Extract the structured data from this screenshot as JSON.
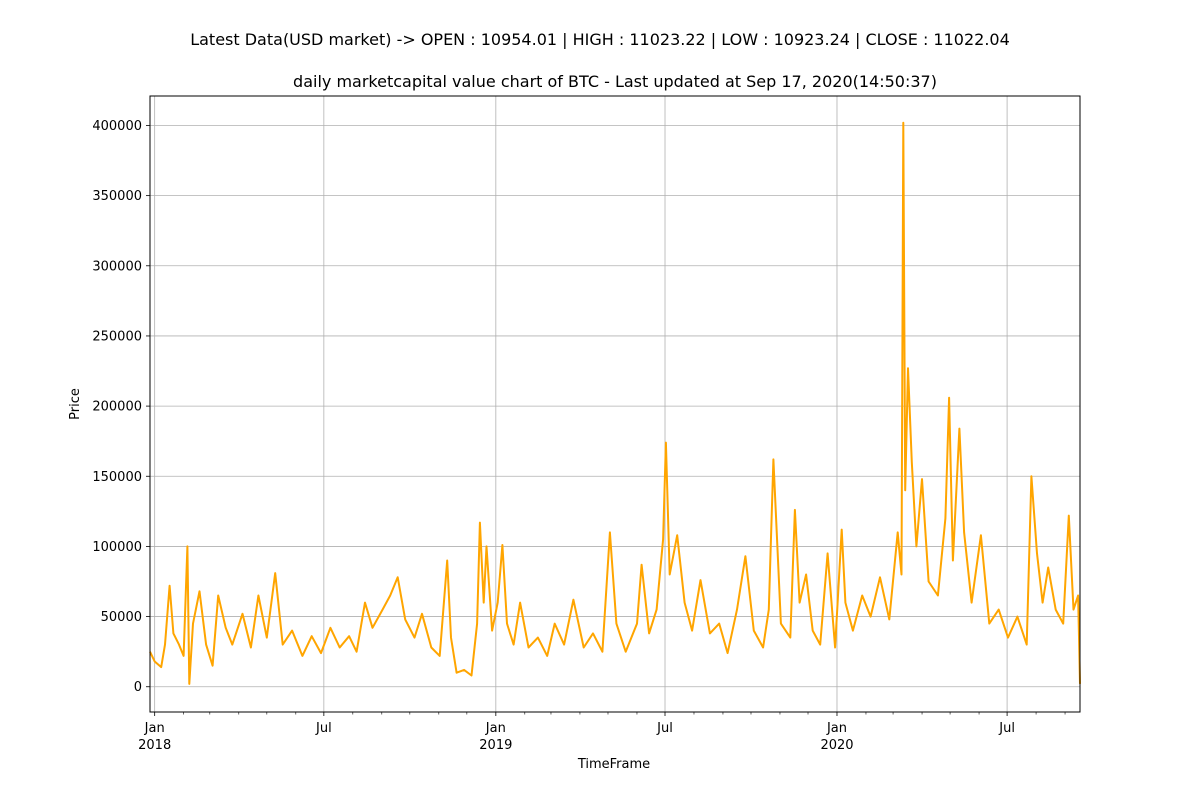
{
  "suptitle": "Latest Data(USD market) -> OPEN : 10954.01 | HIGH : 11023.22 | LOW : 10923.24 | CLOSE : 11022.04",
  "chart_data": {
    "type": "line",
    "title": "daily marketcapital value chart of BTC - Last updated at Sep 17, 2020(14:50:37)",
    "xlabel": "TimeFrame",
    "ylabel": "Price",
    "xlim": [
      "2017-12-27",
      "2020-09-17"
    ],
    "ylim": [
      -18000,
      421000
    ],
    "grid": true,
    "line_color": "#ffa500",
    "yticks": [
      0,
      50000,
      100000,
      150000,
      200000,
      250000,
      300000,
      350000,
      400000
    ],
    "ytick_labels": [
      "0",
      "50000",
      "100000",
      "150000",
      "200000",
      "250000",
      "300000",
      "350000",
      "400000"
    ],
    "xticks_major": [
      {
        "date": "2018-01-01",
        "label": "Jan",
        "year": "2018"
      },
      {
        "date": "2018-07-01",
        "label": "Jul",
        "year": ""
      },
      {
        "date": "2019-01-01",
        "label": "Jan",
        "year": "2019"
      },
      {
        "date": "2019-07-01",
        "label": "Jul",
        "year": ""
      },
      {
        "date": "2020-01-01",
        "label": "Jan",
        "year": "2020"
      },
      {
        "date": "2020-07-01",
        "label": "Jul",
        "year": ""
      }
    ],
    "series": [
      {
        "values": [
          [
            "2017-12-27",
            25000
          ],
          [
            "2018-01-01",
            18000
          ],
          [
            "2018-01-08",
            14000
          ],
          [
            "2018-01-12",
            30000
          ],
          [
            "2018-01-17",
            72000
          ],
          [
            "2018-01-21",
            38000
          ],
          [
            "2018-01-27",
            30000
          ],
          [
            "2018-02-01",
            22000
          ],
          [
            "2018-02-05",
            100000
          ],
          [
            "2018-02-07",
            2000
          ],
          [
            "2018-02-11",
            45000
          ],
          [
            "2018-02-18",
            68000
          ],
          [
            "2018-02-25",
            30000
          ],
          [
            "2018-03-04",
            15000
          ],
          [
            "2018-03-10",
            65000
          ],
          [
            "2018-03-18",
            42000
          ],
          [
            "2018-03-25",
            30000
          ],
          [
            "2018-04-05",
            52000
          ],
          [
            "2018-04-14",
            28000
          ],
          [
            "2018-04-22",
            65000
          ],
          [
            "2018-05-01",
            35000
          ],
          [
            "2018-05-10",
            81000
          ],
          [
            "2018-05-18",
            30000
          ],
          [
            "2018-05-28",
            40000
          ],
          [
            "2018-06-08",
            22000
          ],
          [
            "2018-06-18",
            36000
          ],
          [
            "2018-06-28",
            24000
          ],
          [
            "2018-07-08",
            42000
          ],
          [
            "2018-07-18",
            28000
          ],
          [
            "2018-07-28",
            36000
          ],
          [
            "2018-08-05",
            25000
          ],
          [
            "2018-08-14",
            60000
          ],
          [
            "2018-08-22",
            42000
          ],
          [
            "2018-09-01",
            54000
          ],
          [
            "2018-09-10",
            65000
          ],
          [
            "2018-09-18",
            78000
          ],
          [
            "2018-09-26",
            48000
          ],
          [
            "2018-10-06",
            35000
          ],
          [
            "2018-10-14",
            52000
          ],
          [
            "2018-10-24",
            28000
          ],
          [
            "2018-11-02",
            22000
          ],
          [
            "2018-11-10",
            90000
          ],
          [
            "2018-11-14",
            35000
          ],
          [
            "2018-11-20",
            10000
          ],
          [
            "2018-11-28",
            12000
          ],
          [
            "2018-12-06",
            8000
          ],
          [
            "2018-12-12",
            45000
          ],
          [
            "2018-12-15",
            117000
          ],
          [
            "2018-12-19",
            60000
          ],
          [
            "2018-12-22",
            100000
          ],
          [
            "2018-12-28",
            40000
          ],
          [
            "2019-01-03",
            60000
          ],
          [
            "2019-01-08",
            101000
          ],
          [
            "2019-01-13",
            45000
          ],
          [
            "2019-01-20",
            30000
          ],
          [
            "2019-01-27",
            60000
          ],
          [
            "2019-02-05",
            28000
          ],
          [
            "2019-02-15",
            35000
          ],
          [
            "2019-02-25",
            22000
          ],
          [
            "2019-03-05",
            45000
          ],
          [
            "2019-03-15",
            30000
          ],
          [
            "2019-03-25",
            62000
          ],
          [
            "2019-04-05",
            28000
          ],
          [
            "2019-04-15",
            38000
          ],
          [
            "2019-04-25",
            25000
          ],
          [
            "2019-05-03",
            110000
          ],
          [
            "2019-05-10",
            45000
          ],
          [
            "2019-05-20",
            25000
          ],
          [
            "2019-06-01",
            45000
          ],
          [
            "2019-06-06",
            87000
          ],
          [
            "2019-06-14",
            38000
          ],
          [
            "2019-06-22",
            55000
          ],
          [
            "2019-06-29",
            105000
          ],
          [
            "2019-07-02",
            174000
          ],
          [
            "2019-07-06",
            80000
          ],
          [
            "2019-07-14",
            108000
          ],
          [
            "2019-07-22",
            60000
          ],
          [
            "2019-07-30",
            40000
          ],
          [
            "2019-08-08",
            76000
          ],
          [
            "2019-08-18",
            38000
          ],
          [
            "2019-08-28",
            45000
          ],
          [
            "2019-09-06",
            24000
          ],
          [
            "2019-09-16",
            55000
          ],
          [
            "2019-09-25",
            93000
          ],
          [
            "2019-10-04",
            40000
          ],
          [
            "2019-10-14",
            28000
          ],
          [
            "2019-10-20",
            55000
          ],
          [
            "2019-10-25",
            162000
          ],
          [
            "2019-11-02",
            45000
          ],
          [
            "2019-11-12",
            35000
          ],
          [
            "2019-11-17",
            126000
          ],
          [
            "2019-11-22",
            60000
          ],
          [
            "2019-11-29",
            80000
          ],
          [
            "2019-12-06",
            40000
          ],
          [
            "2019-12-14",
            30000
          ],
          [
            "2019-12-22",
            95000
          ],
          [
            "2019-12-30",
            28000
          ],
          [
            "2020-01-06",
            112000
          ],
          [
            "2020-01-10",
            60000
          ],
          [
            "2020-01-18",
            40000
          ],
          [
            "2020-01-28",
            65000
          ],
          [
            "2020-02-06",
            50000
          ],
          [
            "2020-02-16",
            78000
          ],
          [
            "2020-02-26",
            48000
          ],
          [
            "2020-03-06",
            110000
          ],
          [
            "2020-03-10",
            80000
          ],
          [
            "2020-03-12",
            402000
          ],
          [
            "2020-03-14",
            140000
          ],
          [
            "2020-03-17",
            227000
          ],
          [
            "2020-03-21",
            160000
          ],
          [
            "2020-03-26",
            100000
          ],
          [
            "2020-04-01",
            148000
          ],
          [
            "2020-04-08",
            75000
          ],
          [
            "2020-04-18",
            65000
          ],
          [
            "2020-04-26",
            120000
          ],
          [
            "2020-04-30",
            206000
          ],
          [
            "2020-05-04",
            90000
          ],
          [
            "2020-05-11",
            184000
          ],
          [
            "2020-05-16",
            110000
          ],
          [
            "2020-05-24",
            60000
          ],
          [
            "2020-06-03",
            108000
          ],
          [
            "2020-06-12",
            45000
          ],
          [
            "2020-06-22",
            55000
          ],
          [
            "2020-07-02",
            35000
          ],
          [
            "2020-07-12",
            50000
          ],
          [
            "2020-07-22",
            30000
          ],
          [
            "2020-07-27",
            150000
          ],
          [
            "2020-08-02",
            95000
          ],
          [
            "2020-08-08",
            60000
          ],
          [
            "2020-08-14",
            85000
          ],
          [
            "2020-08-22",
            55000
          ],
          [
            "2020-08-30",
            45000
          ],
          [
            "2020-09-05",
            122000
          ],
          [
            "2020-09-10",
            55000
          ],
          [
            "2020-09-15",
            65000
          ],
          [
            "2020-09-17",
            2000
          ]
        ]
      }
    ]
  }
}
